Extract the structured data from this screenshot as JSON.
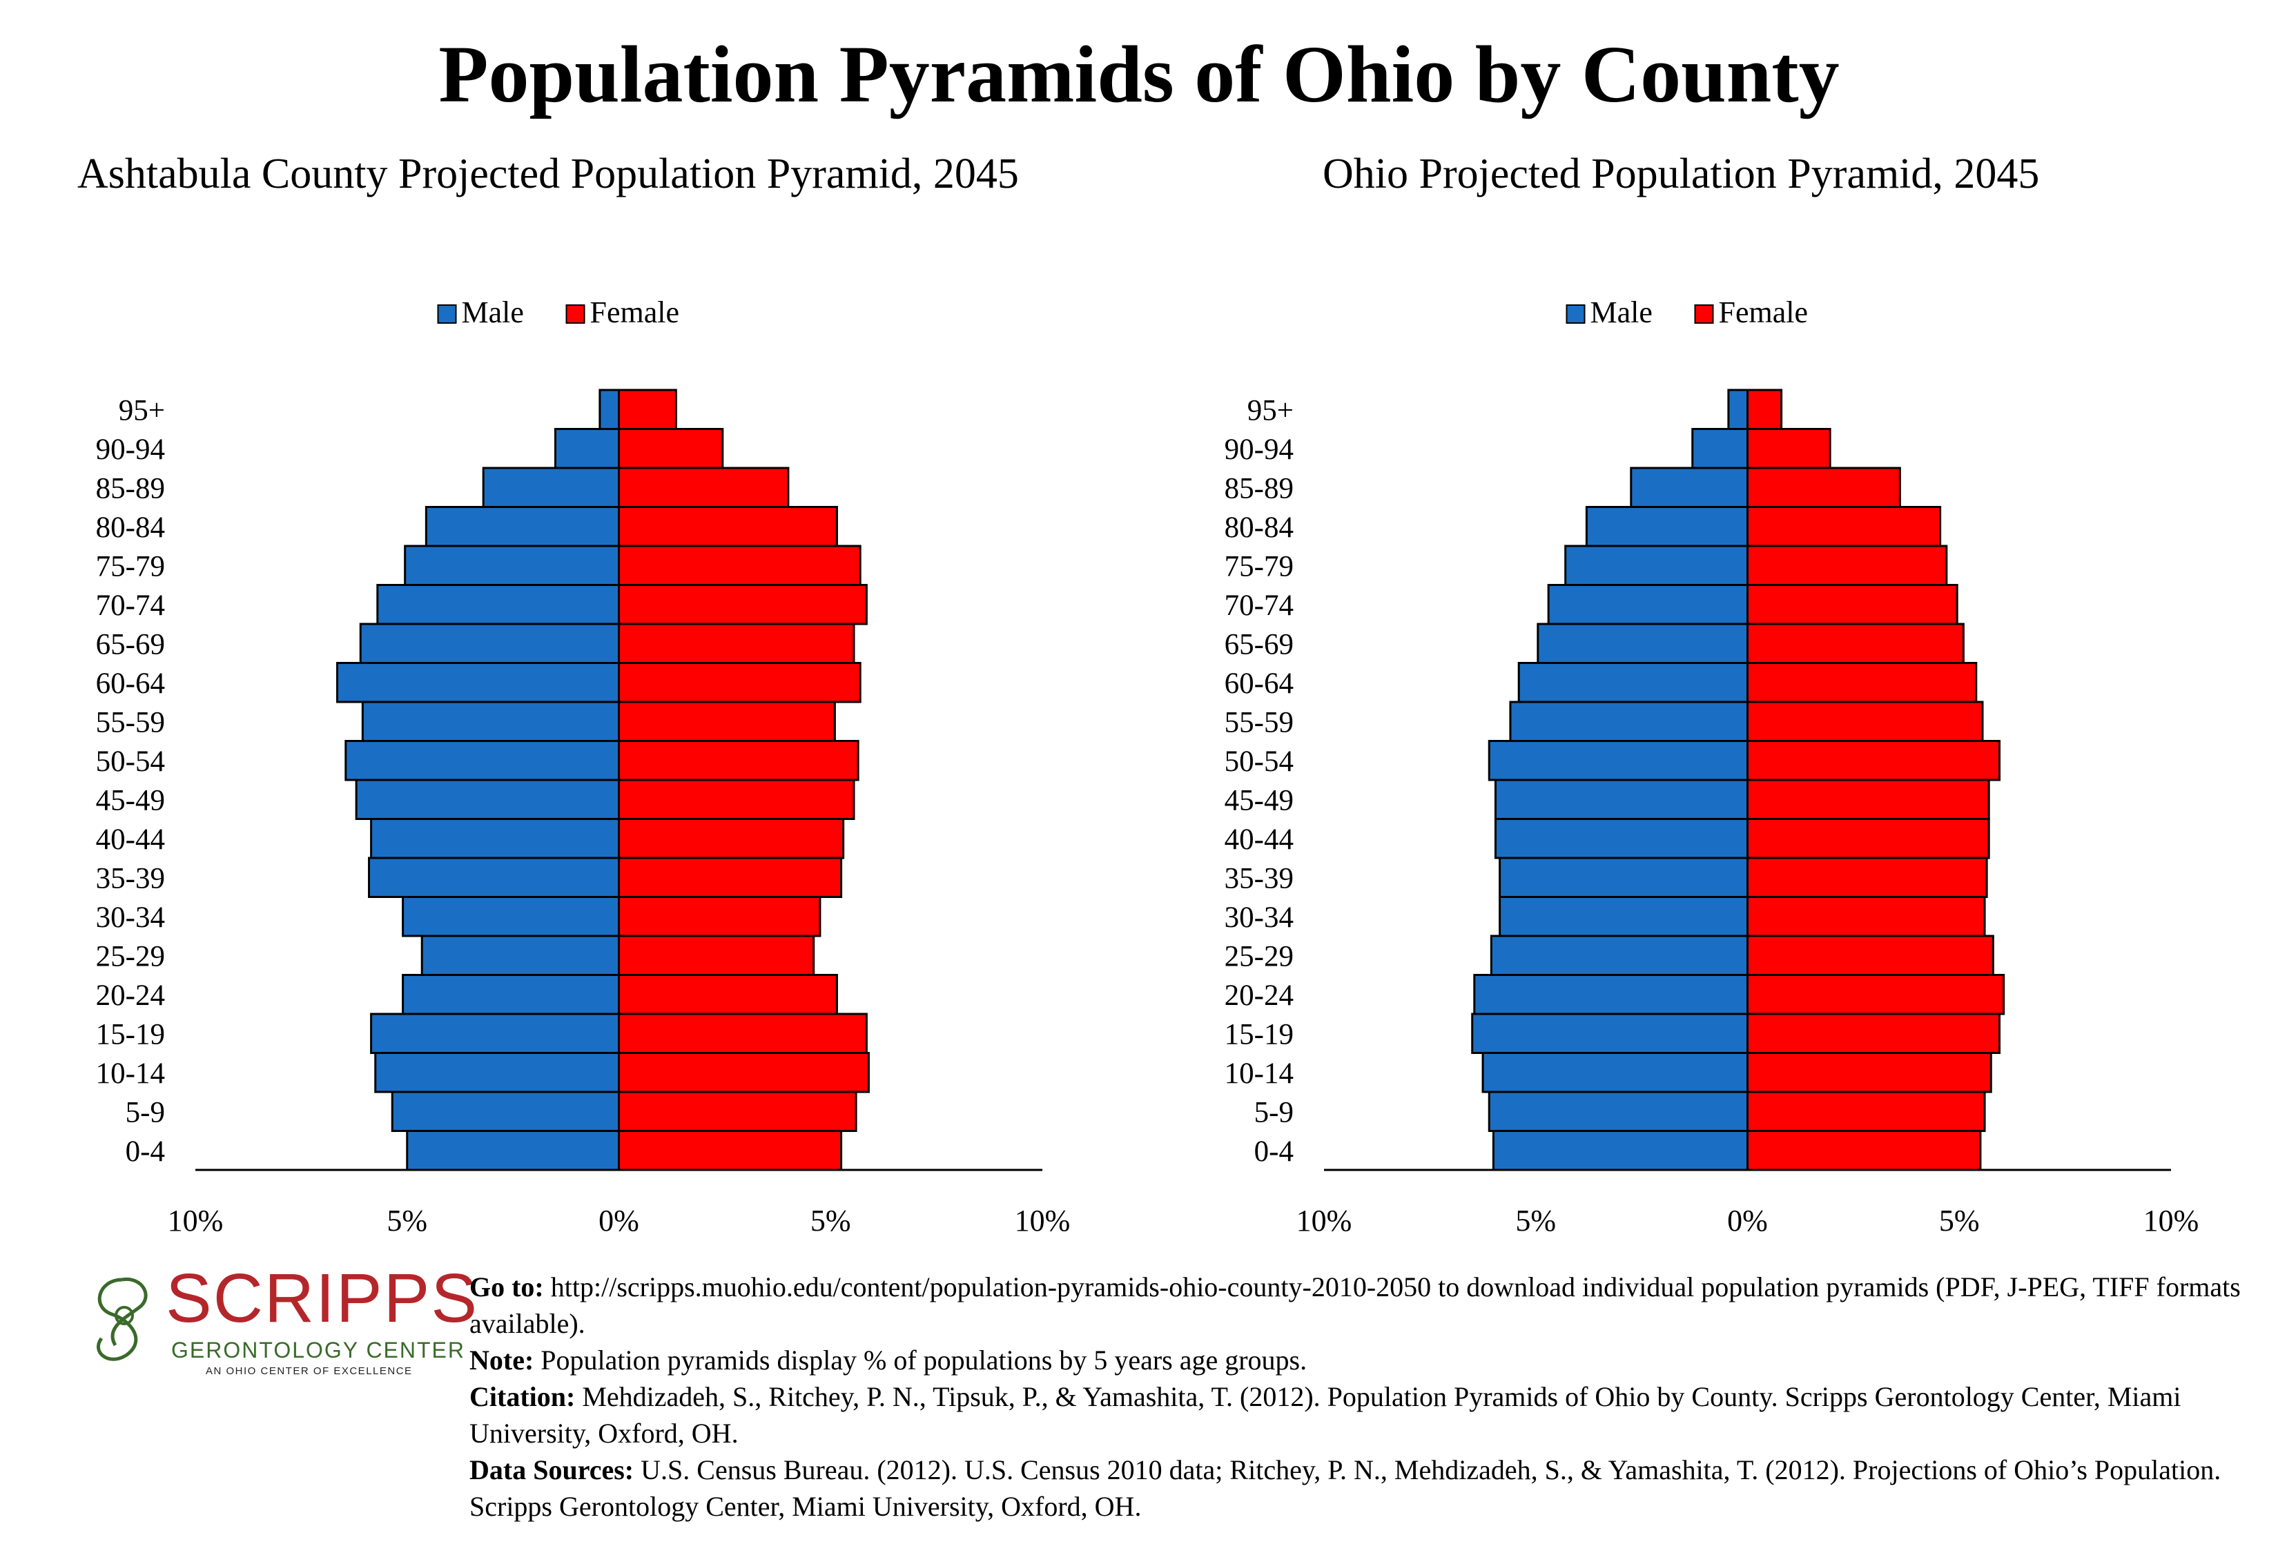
{
  "title": "Population Pyramids of Ohio by County",
  "colors": {
    "male": "#1a6fc4",
    "female": "#ff0000",
    "logo_red": "#b5262b",
    "logo_green": "#3a6a2a"
  },
  "chart_data": [
    {
      "type": "bar",
      "orientation": "horizontal-pyramid",
      "title": "Ashtabula County Projected Population Pyramid, 2045",
      "categories": [
        "0-4",
        "5-9",
        "10-14",
        "15-19",
        "20-24",
        "25-29",
        "30-34",
        "35-39",
        "40-44",
        "45-49",
        "50-54",
        "55-59",
        "60-64",
        "65-69",
        "70-74",
        "75-79",
        "80-84",
        "85-89",
        "90-94",
        "95+"
      ],
      "series": [
        {
          "name": "Male",
          "values": [
            5.0,
            5.35,
            5.75,
            5.85,
            5.1,
            4.65,
            5.1,
            5.9,
            5.85,
            6.2,
            6.45,
            6.05,
            6.65,
            6.1,
            5.7,
            5.05,
            4.55,
            3.2,
            1.5,
            0.45
          ]
        },
        {
          "name": "Female",
          "values": [
            5.25,
            5.6,
            5.9,
            5.85,
            5.15,
            4.6,
            4.75,
            5.25,
            5.3,
            5.55,
            5.65,
            5.1,
            5.7,
            5.55,
            5.85,
            5.7,
            5.15,
            4.0,
            2.45,
            1.35
          ]
        }
      ],
      "xlim": [
        -10,
        10
      ],
      "x_ticks": [
        "10%",
        "5%",
        "0%",
        "5%",
        "10%"
      ],
      "legend": "top",
      "grid": false
    },
    {
      "type": "bar",
      "orientation": "horizontal-pyramid",
      "title": "Ohio Projected Population Pyramid, 2045",
      "categories": [
        "0-4",
        "5-9",
        "10-14",
        "15-19",
        "20-24",
        "25-29",
        "30-34",
        "35-39",
        "40-44",
        "45-49",
        "50-54",
        "55-59",
        "60-64",
        "65-69",
        "70-74",
        "75-79",
        "80-84",
        "85-89",
        "90-94",
        "95+"
      ],
      "series": [
        {
          "name": "Male",
          "values": [
            6.0,
            6.1,
            6.25,
            6.5,
            6.45,
            6.05,
            5.85,
            5.85,
            5.95,
            5.95,
            6.1,
            5.6,
            5.4,
            4.95,
            4.7,
            4.3,
            3.8,
            2.75,
            1.3,
            0.45
          ]
        },
        {
          "name": "Female",
          "values": [
            5.5,
            5.6,
            5.75,
            5.95,
            6.05,
            5.8,
            5.6,
            5.65,
            5.7,
            5.7,
            5.95,
            5.55,
            5.4,
            5.1,
            4.95,
            4.7,
            4.55,
            3.6,
            1.95,
            0.8
          ]
        }
      ],
      "xlim": [
        -10,
        10
      ],
      "x_ticks": [
        "10%",
        "5%",
        "0%",
        "5%",
        "10%"
      ],
      "legend": "top",
      "grid": false
    }
  ],
  "logo": {
    "word": "SCRIPPS",
    "line1": "GERONTOLOGY CENTER",
    "line2": "AN OHIO CENTER OF EXCELLENCE"
  },
  "footer": {
    "goto_label": "Go to:",
    "goto_text": " http://scripps.muohio.edu/content/population-pyramids-ohio-county-2010-2050 to download individual population pyramids (PDF, J-PEG, TIFF formats available).",
    "note_label": "Note:",
    "note_text": " Population pyramids display % of populations by 5 years age groups.",
    "citation_label": "Citation:",
    "citation_text": " Mehdizadeh, S., Ritchey, P. N., Tipsuk, P., & Yamashita, T. (2012). Population Pyramids of Ohio by County. Scripps Gerontology Center, Miami University, Oxford, OH.",
    "sources_label": "Data Sources:",
    "sources_text": " U.S. Census Bureau. (2012). U.S. Census 2010 data; Ritchey, P. N., Mehdizadeh, S., & Yamashita, T. (2012). Projections of Ohio’s Population. Scripps Gerontology Center, Miami University, Oxford, OH."
  }
}
